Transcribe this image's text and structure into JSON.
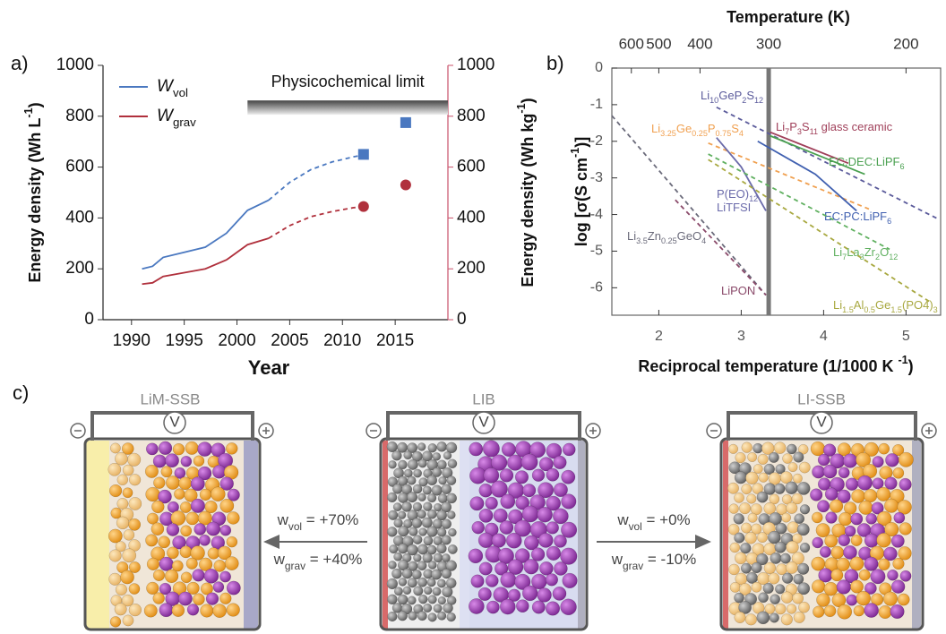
{
  "chart_data": [
    {
      "type": "line",
      "panel_label": "a)",
      "xlabel": "Year",
      "ylabel": [
        {
          "t": "Energy density (Wh L"
        },
        {
          "sup": "-1"
        },
        {
          "t": ")"
        }
      ],
      "y2label": [
        {
          "t": "Energy density (Wh kg"
        },
        {
          "sup": "-1"
        },
        {
          "t": ")"
        }
      ],
      "xlim": [
        1987.3,
        2020
      ],
      "xticks": [
        1990,
        1995,
        2000,
        2005,
        2010,
        2015
      ],
      "ylim": [
        0,
        1000
      ],
      "yticks": [
        0,
        200,
        400,
        600,
        800,
        1000
      ],
      "y2lim": [
        0,
        1000
      ],
      "y2ticks": [
        0,
        200,
        400,
        600,
        800,
        1000
      ],
      "y2color": "#c8506a",
      "legend": "upper left",
      "limit": {
        "label": "Physicochemical limit",
        "x": [
          2001,
          2020
        ],
        "band": [
          806,
          862
        ]
      },
      "series": [
        {
          "name": [
            {
              "it": "W"
            },
            {
              "sub": "vol"
            }
          ],
          "color": "#4a78c0",
          "x": [
            1991,
            1992,
            1993,
            1995,
            1997,
            1999,
            2001,
            2003
          ],
          "values": [
            200,
            210,
            245,
            265,
            285,
            340,
            430,
            470
          ],
          "projection": {
            "x": [
              2003,
              2005,
              2007,
              2009,
              2011,
              2012
            ],
            "values": [
              470,
              540,
              590,
              620,
              640,
              648
            ]
          },
          "markers": {
            "shape": "square",
            "x": [
              2012,
              2016
            ],
            "values": [
              650,
              775
            ]
          }
        },
        {
          "name": [
            {
              "it": "W"
            },
            {
              "sub": "grav"
            }
          ],
          "color": "#b0303c",
          "axis": "y2",
          "x": [
            1991,
            1992,
            1993,
            1995,
            1997,
            1999,
            2001,
            2003
          ],
          "values": [
            140,
            145,
            170,
            185,
            200,
            235,
            295,
            320
          ],
          "projection": {
            "x": [
              2003,
              2005,
              2007,
              2009,
              2011,
              2012
            ],
            "values": [
              320,
              370,
              405,
              425,
              440,
              445
            ]
          },
          "markers": {
            "shape": "circle",
            "x": [
              2012,
              2016
            ],
            "values": [
              445,
              530
            ]
          }
        }
      ]
    },
    {
      "type": "line",
      "panel_label": "b)",
      "frame": true,
      "xlabel": [
        {
          "t": "Reciprocal temperature (1/1000 K "
        },
        {
          "sup": "-1"
        },
        {
          "t": ")"
        }
      ],
      "ylabel": [
        {
          "t": "log [σ(S cm"
        },
        {
          "sup": "-1"
        },
        {
          "t": ")]"
        }
      ],
      "x2label": "Temperature (K)",
      "xlim": [
        1.43,
        5.42
      ],
      "xticks": [
        2,
        3,
        4,
        5
      ],
      "ylim": [
        -6.75,
        0
      ],
      "yticks": [
        0,
        -1,
        -2,
        -3,
        -4,
        -5,
        -6
      ],
      "x2ticks": [
        600,
        500,
        400,
        300,
        200
      ],
      "x2scale": "reciprocal",
      "vline_x2": 300,
      "series": [
        {
          "name": [
            {
              "t": "Li"
            },
            {
              "sub": "10"
            },
            {
              "t": "GeP"
            },
            {
              "sub": "2"
            },
            {
              "t": "S"
            },
            {
              "sub": "12"
            }
          ],
          "color": "#5b5b9b",
          "dash": true,
          "x": [
            2.7,
            5.37
          ],
          "values": [
            -1.07,
            -4.1
          ]
        },
        {
          "name": [
            {
              "t": "Li"
            },
            {
              "sub": "7"
            },
            {
              "t": "P"
            },
            {
              "sub": "3"
            },
            {
              "t": "S"
            },
            {
              "sub": "11"
            },
            {
              "t": " glass ceramic"
            }
          ],
          "color": "#a0405a",
          "dash": false,
          "x": [
            3.35,
            4.3
          ],
          "values": [
            -1.75,
            -2.6
          ]
        },
        {
          "name": [
            {
              "t": "Li"
            },
            {
              "sub": "3.25"
            },
            {
              "t": "Ge"
            },
            {
              "sub": "0.25"
            },
            {
              "t": "P"
            },
            {
              "sub": "0.75"
            },
            {
              "t": "S"
            },
            {
              "sub": "4"
            }
          ],
          "color": "#f0a050",
          "dash": true,
          "x": [
            2.6,
            4.55
          ],
          "values": [
            -2.05,
            -3.85
          ]
        },
        {
          "name": [
            {
              "t": "EC:DEC:LiPF"
            },
            {
              "sub": "6"
            }
          ],
          "color": "#4aa050",
          "dash": false,
          "x": [
            3.35,
            4.5
          ],
          "values": [
            -1.85,
            -2.9
          ]
        },
        {
          "name": [
            {
              "t": "P(EO)"
            },
            {
              "sub": "12"
            },
            {
              "t": "LiTFSI"
            }
          ],
          "color": "#6a6aaa",
          "dash": false,
          "x": [
            2.7,
            3.0,
            3.3
          ],
          "values": [
            -1.9,
            -2.7,
            -3.9
          ]
        },
        {
          "name": [
            {
              "t": "EC:PC:LiPF"
            },
            {
              "sub": "6"
            }
          ],
          "color": "#4060b0",
          "dash": false,
          "x": [
            3.2,
            3.9,
            4.4
          ],
          "values": [
            -2.0,
            -2.9,
            -3.9
          ]
        },
        {
          "name": [
            {
              "t": "Li"
            },
            {
              "sub": "7"
            },
            {
              "t": "La"
            },
            {
              "sub": "3"
            },
            {
              "t": "Zr"
            },
            {
              "sub": "2"
            },
            {
              "t": "O"
            },
            {
              "sub": "12"
            }
          ],
          "color": "#60b060",
          "dash": true,
          "x": [
            2.6,
            4.8
          ],
          "values": [
            -2.35,
            -4.95
          ]
        },
        {
          "name": [
            {
              "t": "Li"
            },
            {
              "sub": "1.5"
            },
            {
              "t": "Al"
            },
            {
              "sub": "0.5"
            },
            {
              "t": "Ge"
            },
            {
              "sub": "1.5"
            },
            {
              "t": "(PO4)"
            },
            {
              "sub": "3"
            }
          ],
          "color": "#a8a840",
          "dash": true,
          "x": [
            2.6,
            5.3
          ],
          "values": [
            -2.5,
            -6.4
          ]
        },
        {
          "name": [
            {
              "t": "Li"
            },
            {
              "sub": "3.5"
            },
            {
              "t": "Zn"
            },
            {
              "sub": "0.25"
            },
            {
              "t": "GeO"
            },
            {
              "sub": "4"
            }
          ],
          "color": "#6a6a7a",
          "dash": true,
          "x": [
            1.43,
            3.3
          ],
          "values": [
            -1.3,
            -6.2
          ]
        },
        {
          "name": [
            {
              "t": "LiPON"
            }
          ],
          "color": "#8a4a6a",
          "dash": true,
          "x": [
            2.2,
            3.3
          ],
          "values": [
            -3.6,
            -6.2
          ]
        }
      ]
    }
  ],
  "diagram": {
    "panel_label": "c)",
    "cells": [
      "LiM-SSB",
      "LIB",
      "LI-SSB"
    ],
    "meters": [
      "V",
      "V",
      "V"
    ],
    "left_arrow": {
      "top": [
        {
          "t": "w"
        },
        {
          "sub": "vol"
        },
        {
          "t": " = +70%"
        }
      ],
      "bottom": [
        {
          "t": "w"
        },
        {
          "sub": "grav"
        },
        {
          "t": " = +40%"
        }
      ]
    },
    "right_arrow": {
      "top": [
        {
          "t": "w"
        },
        {
          "sub": "vol"
        },
        {
          "t": " = +0%"
        }
      ],
      "bottom": [
        {
          "t": "w"
        },
        {
          "sub": "grav"
        },
        {
          "t": " = -10%"
        }
      ]
    }
  }
}
